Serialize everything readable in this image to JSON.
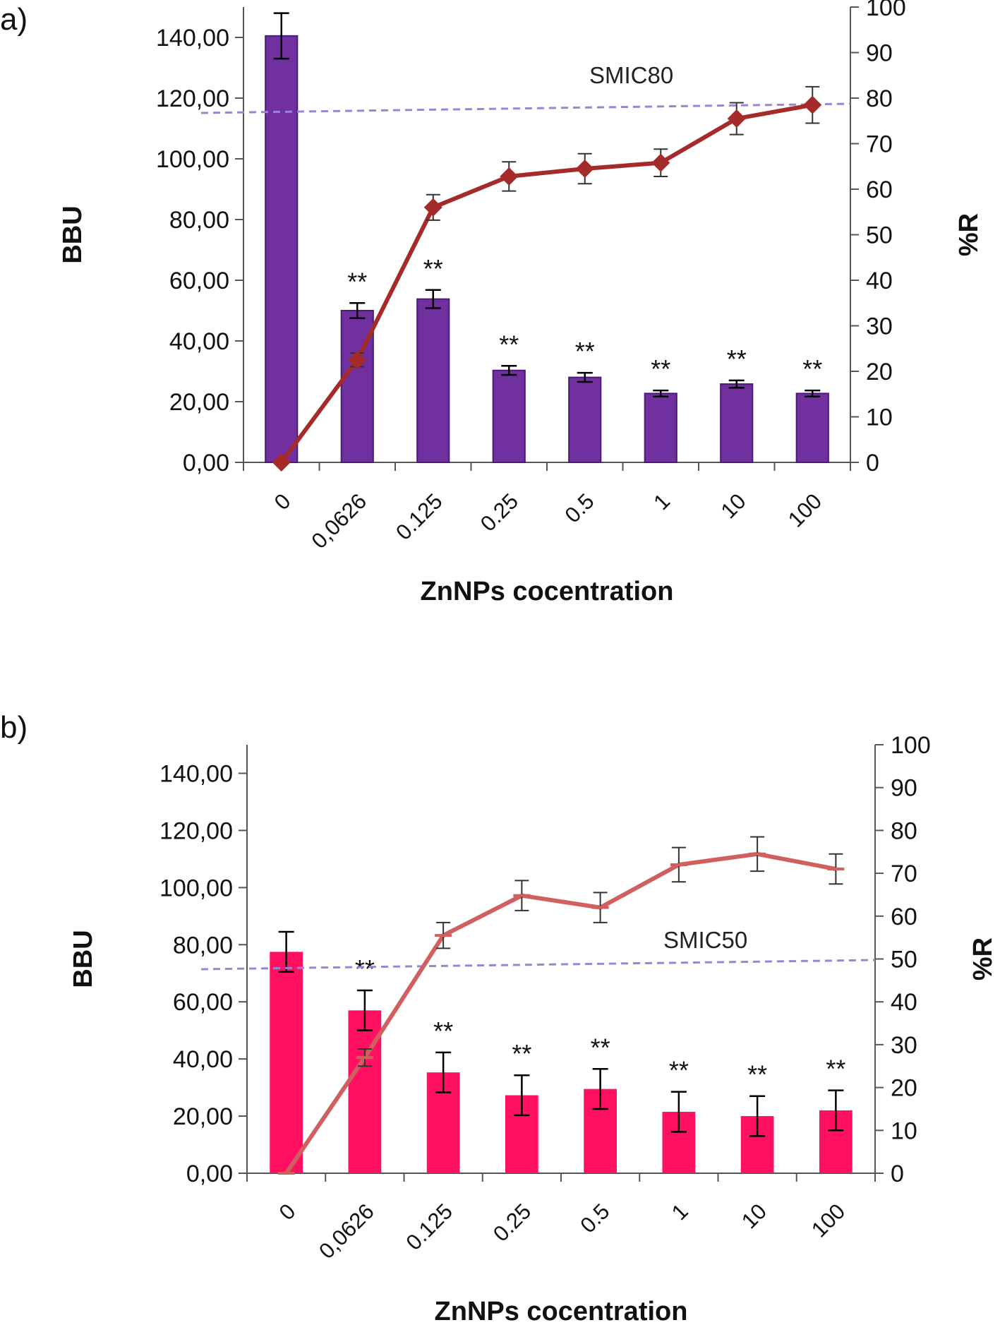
{
  "chart_data": [
    {
      "type": "bar",
      "panel_label": "a)",
      "categories": [
        "0",
        "0,0626",
        "0.125",
        "0.25",
        "0.5",
        "1",
        "10",
        "100"
      ],
      "xlabel": "ZnNPs cocentration",
      "ylabel": "BBU",
      "ylabel2": "%R",
      "ylim": [
        0,
        150
      ],
      "ylim2": [
        0,
        100
      ],
      "yticks": [
        "0,00",
        "20,00",
        "40,00",
        "60,00",
        "80,00",
        "100,00",
        "120,00",
        "140,00"
      ],
      "yticks2": [
        "0",
        "10",
        "20",
        "30",
        "40",
        "50",
        "60",
        "70",
        "80",
        "90",
        "100"
      ],
      "bar_color": "#7030A0",
      "line_color": "#A52A2A",
      "line_marker": "diamond",
      "series": [
        {
          "name": "BBU",
          "axis": "left",
          "values": [
            140.5,
            50.0,
            53.8,
            30.3,
            28.0,
            22.7,
            25.8,
            22.7
          ],
          "errors": [
            7.5,
            2.5,
            3.0,
            1.5,
            1.5,
            1.0,
            1.2,
            1.0
          ]
        },
        {
          "name": "%R",
          "axis": "right",
          "values": [
            0,
            22.5,
            56,
            62.8,
            64.5,
            65.8,
            75.5,
            78.5
          ],
          "errors": [
            0,
            1.5,
            2.8,
            3.2,
            3.3,
            3.0,
            3.5,
            4.0
          ]
        }
      ],
      "significance": [
        "",
        "**",
        "**",
        "**",
        "**",
        "**",
        "**",
        "**"
      ],
      "reference_line": {
        "label": "SMIC80",
        "value": 80,
        "axis": "right",
        "style": "dashed"
      }
    },
    {
      "type": "bar",
      "panel_label": "b)",
      "categories": [
        "0",
        "0,0626",
        "0.125",
        "0.25",
        "0.5",
        "1",
        "10",
        "100"
      ],
      "xlabel": "ZnNPs cocentration",
      "ylabel": "BBU",
      "ylabel2": "%R",
      "ylim": [
        0,
        150
      ],
      "ylim2": [
        0,
        100
      ],
      "yticks": [
        "0,00",
        "20,00",
        "40,00",
        "60,00",
        "80,00",
        "100,00",
        "120,00",
        "140,00"
      ],
      "yticks2": [
        "0",
        "10",
        "20",
        "30",
        "40",
        "50",
        "60",
        "70",
        "80",
        "90",
        "100"
      ],
      "bar_color": "#FF1060",
      "line_color": "#D06060",
      "line_marker": "dash",
      "series": [
        {
          "name": "BBU",
          "axis": "left",
          "values": [
            77.5,
            57.0,
            35.3,
            27.3,
            29.5,
            21.5,
            20.0,
            22.0
          ],
          "errors": [
            7.0,
            7.0,
            7.0,
            7.0,
            7.0,
            7.0,
            7.0,
            7.0
          ]
        },
        {
          "name": "%R",
          "axis": "right",
          "values": [
            0,
            27,
            55.5,
            64.8,
            62,
            72,
            74.5,
            71
          ],
          "errors": [
            0,
            2,
            3,
            3.5,
            3.5,
            4,
            4,
            3.5
          ]
        }
      ],
      "significance": [
        "",
        "**",
        "**",
        "**",
        "**",
        "**",
        "**",
        "**"
      ],
      "reference_line": {
        "label": "SMIC50",
        "value": 50,
        "axis": "right",
        "style": "dashed"
      }
    }
  ]
}
